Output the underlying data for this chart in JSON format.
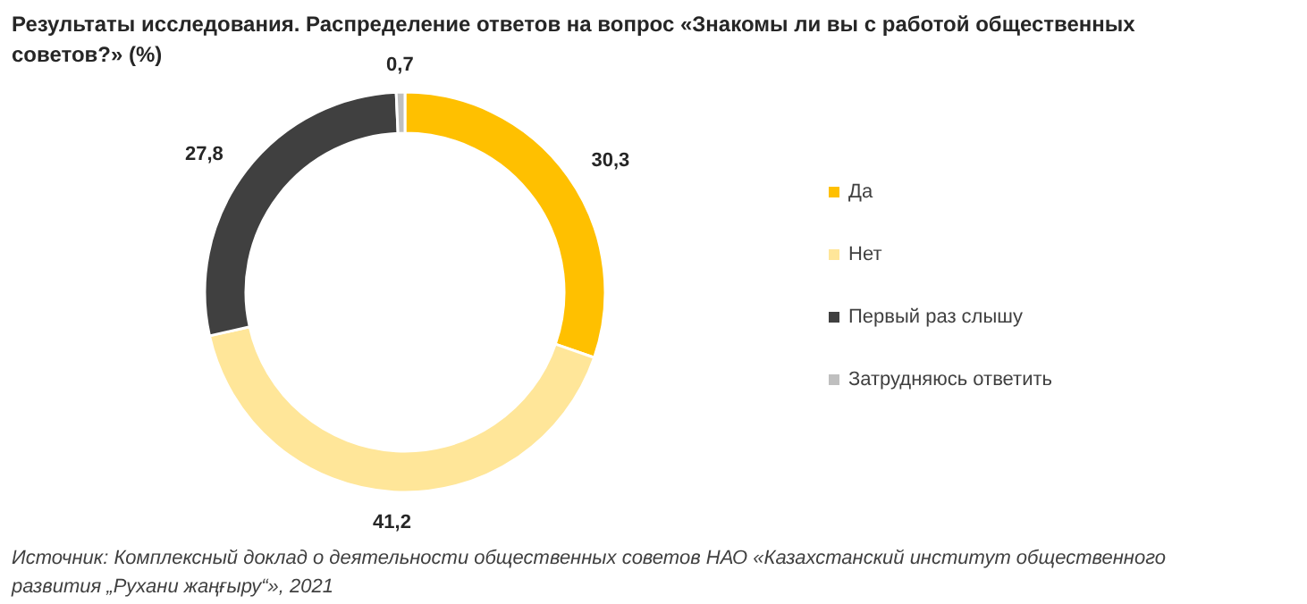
{
  "chart_data": {
    "type": "donut",
    "title": "Результаты исследования. Распределение ответов на вопрос «Знакомы ли вы с работой общественных советов?» (%)",
    "categories": [
      "Да",
      "Нет",
      "Первый раз слышу",
      "Затрудняюсь ответить"
    ],
    "values": [
      30.3,
      41.2,
      27.8,
      0.7
    ],
    "colors": [
      "#ffc000",
      "#ffe699",
      "#404040",
      "#bfbfbf"
    ],
    "value_labels": [
      "30,3",
      "41,2",
      "27,8",
      "0,7"
    ],
    "legend": "right",
    "annotations": [
      "Источник: Комплексный доклад о деятельности общественных советов НАО «Казахстанский институт общественного развития „Рухани жаңғыру“», 2021"
    ]
  }
}
